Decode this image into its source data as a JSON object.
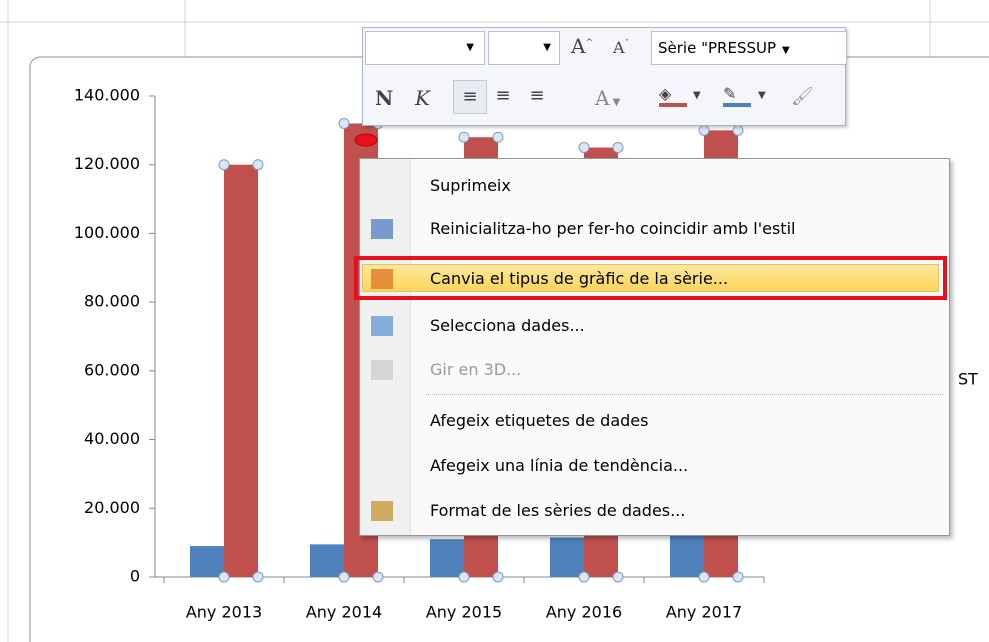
{
  "chart_data": {
    "type": "bar",
    "categories": [
      "Any 2013",
      "Any 2014",
      "Any 2015",
      "Any 2016",
      "Any 2017"
    ],
    "series": [
      {
        "color": "#4f81bd",
        "values": [
          9000,
          9500,
          11000,
          11500,
          12000
        ]
      },
      {
        "color": "#c0504d",
        "values": [
          120000,
          132000,
          128000,
          125000,
          130000
        ]
      }
    ],
    "ylim": [
      0,
      140000
    ],
    "yticks": [
      0,
      {
        "value": 20000,
        "label": "20.000"
      },
      {
        "value": 40000,
        "label": "40.000"
      },
      {
        "value": 60000,
        "label": "60.000"
      },
      {
        "value": 80000,
        "label": "80.000"
      },
      {
        "value": 100000,
        "label": "100.000"
      },
      {
        "value": 120000,
        "label": "120.000"
      },
      {
        "value": 140000,
        "label": "140.000"
      }
    ],
    "legend_fragment": "ST"
  },
  "toolbar": {
    "series_selector": "Sèrie \"PRESSUP",
    "bold": "N",
    "italic": "K",
    "font_color": "A"
  },
  "menu": {
    "items": [
      {
        "label": "Suprimeix",
        "state": "normal"
      },
      {
        "label": "Reinicialitza-ho per fer-ho coincidir amb l'estil",
        "state": "normal"
      },
      {
        "label": "Canvia el tipus de gràfic de la sèrie...",
        "state": "highlighted"
      },
      {
        "label": "Selecciona dades...",
        "state": "normal"
      },
      {
        "label": "Gir en 3D...",
        "state": "disabled"
      },
      {
        "label": "Afegeix etiquetes de dades",
        "state": "normal"
      },
      {
        "label": "Afegeix una línia de tendència...",
        "state": "normal"
      },
      {
        "label": "Format de les sèries de dades...",
        "state": "normal"
      }
    ]
  }
}
